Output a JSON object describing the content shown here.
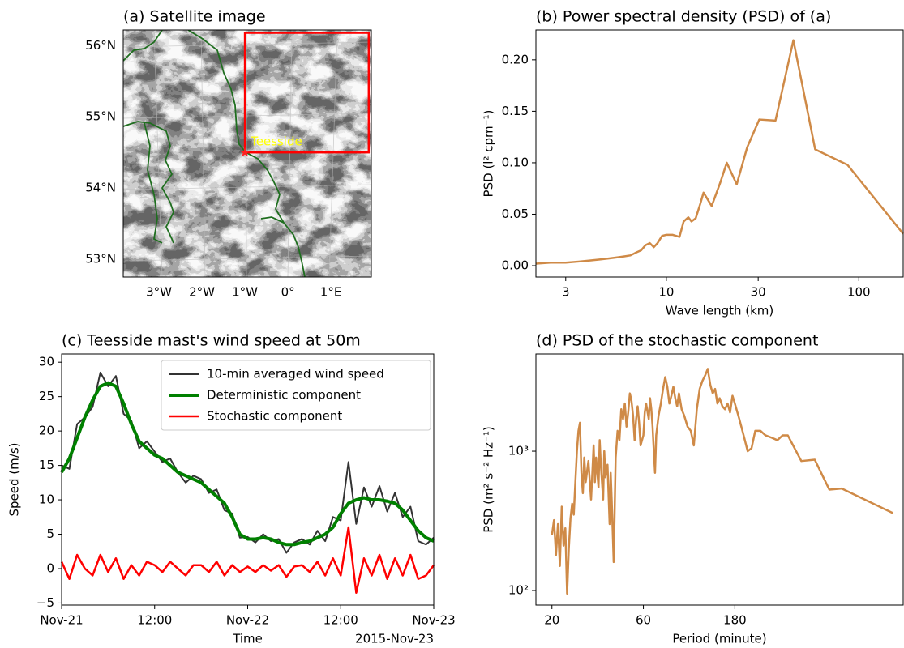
{
  "chart_data": [
    {
      "type": "map",
      "title": "(a) Satellite image",
      "xlim": [
        -3.83,
        1.94
      ],
      "ylim": [
        52.75,
        56.22
      ],
      "xticks": [
        {
          "value": -3,
          "label": "3°W"
        },
        {
          "value": -2,
          "label": "2°W"
        },
        {
          "value": -1,
          "label": "1°W"
        },
        {
          "value": 0,
          "label": "0°"
        },
        {
          "value": 1,
          "label": "1°E"
        }
      ],
      "yticks": [
        {
          "value": 53,
          "label": "53°N"
        },
        {
          "value": 54,
          "label": "54°N"
        },
        {
          "value": 55,
          "label": "55°N"
        },
        {
          "value": 56,
          "label": "56°N"
        }
      ],
      "marker": {
        "label": "Teesside",
        "x": -1.0,
        "y": 54.5,
        "color": "#ff2020",
        "label_color": "#ffff00"
      },
      "region": {
        "x": [
          -1.0,
          1.88
        ],
        "y": [
          54.5,
          56.18
        ],
        "color": "#ff0000"
      }
    },
    {
      "type": "line",
      "title": "(b) Power spectral density (PSD) of (a)",
      "xlabel": "Wave length (km)",
      "ylabel": "PSD (l² cpm⁻¹)",
      "xscale": "log",
      "xlim": [
        2.1,
        170
      ],
      "ylim": [
        -0.011,
        0.229
      ],
      "xticks": [
        3,
        10,
        30,
        100
      ],
      "yticks": [
        {
          "value": 0,
          "label": "0.00"
        },
        0.05,
        {
          "value": 0.1,
          "label": "0.10"
        },
        0.15,
        {
          "value": 0.2,
          "label": "0.20"
        }
      ],
      "color": "#cf8a47",
      "x": [
        2.1,
        2.5,
        3,
        3.5,
        4,
        4.5,
        5,
        5.5,
        6,
        6.5,
        7,
        7.4,
        7.8,
        8.2,
        8.6,
        9,
        9.5,
        10,
        10.8,
        11.7,
        12.3,
        13,
        13.5,
        14.2,
        15,
        15.6,
        17.2,
        19,
        20.6,
        23.2,
        26.3,
        30.4,
        36.9,
        45.7,
        59.3,
        87.3,
        170
      ],
      "values": [
        0.002,
        0.003,
        0.003,
        0.004,
        0.005,
        0.006,
        0.007,
        0.008,
        0.009,
        0.01,
        0.013,
        0.015,
        0.02,
        0.022,
        0.018,
        0.022,
        0.029,
        0.03,
        0.03,
        0.028,
        0.043,
        0.047,
        0.043,
        0.046,
        0.06,
        0.071,
        0.058,
        0.08,
        0.1,
        0.079,
        0.115,
        0.142,
        0.141,
        0.219,
        0.113,
        0.098,
        0.031
      ]
    },
    {
      "type": "line",
      "title": "(c) Teesside mast's wind speed at 50m",
      "xlabel": "Time",
      "ylabel": "Speed (m/s)",
      "x_offset_label": "2015-Nov-23",
      "xlim": [
        0,
        48
      ],
      "ylim": [
        -5.3,
        31.2
      ],
      "xticks": [
        {
          "value": 0,
          "label": "Nov-21"
        },
        {
          "value": 12,
          "label": "12:00"
        },
        {
          "value": 24,
          "label": "Nov-22"
        },
        {
          "value": 36,
          "label": "12:00"
        },
        {
          "value": 48,
          "label": "Nov-23"
        }
      ],
      "yticks": [
        {
          "value": -5,
          "label": "−5"
        },
        0,
        5,
        10,
        15,
        20,
        25,
        30
      ],
      "legend": "upper right",
      "x": [
        0,
        1,
        2,
        3,
        4,
        5,
        6,
        7,
        8,
        9,
        10,
        11,
        12,
        13,
        14,
        15,
        16,
        17,
        18,
        19,
        20,
        21,
        22,
        23,
        24,
        25,
        26,
        27,
        28,
        29,
        30,
        31,
        32,
        33,
        34,
        35,
        36,
        37,
        38,
        39,
        40,
        41,
        42,
        43,
        44,
        45,
        46,
        47,
        48
      ],
      "series": [
        {
          "name": "10-min averaged wind speed",
          "color": "#333333",
          "width": 2,
          "values": [
            15,
            14.5,
            21,
            22,
            23.5,
            28.5,
            26.5,
            28,
            22.5,
            21.5,
            17.5,
            18.5,
            17,
            15.5,
            16,
            14,
            12.5,
            13.5,
            13,
            11,
            11.5,
            8.5,
            8,
            4.5,
            4.6,
            3.8,
            5,
            4,
            4.3,
            2.3,
            3.8,
            4.3,
            3.5,
            5.5,
            4,
            7.5,
            7,
            15.5,
            6.5,
            11.8,
            9,
            12,
            8.3,
            11,
            7.5,
            9,
            4,
            3.5,
            4.5
          ]
        },
        {
          "name": "Deterministic component",
          "color": "#008000",
          "width": 4,
          "values": [
            14,
            16,
            19,
            22,
            24.5,
            26.5,
            27,
            26.5,
            24,
            21,
            18.5,
            17.5,
            16.5,
            16,
            15,
            14,
            13.5,
            13,
            12.5,
            11.5,
            10.5,
            9.5,
            7.5,
            5,
            4.3,
            4.3,
            4.5,
            4.3,
            3.8,
            3.5,
            3.5,
            3.8,
            4,
            4.5,
            5,
            6,
            8,
            9.5,
            10,
            10.3,
            10,
            10,
            9.8,
            9.5,
            8.5,
            7,
            5.5,
            4.5,
            4
          ]
        },
        {
          "name": "Stochastic component",
          "color": "#ff0000",
          "width": 2.5,
          "values": [
            1,
            -1.5,
            2,
            0,
            -1,
            2,
            -0.5,
            1.5,
            -1.5,
            0.5,
            -1,
            1,
            0.5,
            -0.5,
            1,
            0,
            -1,
            0.5,
            0.5,
            -0.5,
            1,
            -1,
            0.5,
            -0.5,
            0.3,
            -0.5,
            0.5,
            -0.3,
            0.5,
            -1.2,
            0.3,
            0.5,
            -0.5,
            1,
            -1,
            1.5,
            -1,
            6,
            -3.5,
            1.5,
            -1,
            2,
            -1.5,
            1.5,
            -1,
            2,
            -1.5,
            -1,
            0.5
          ]
        }
      ]
    },
    {
      "type": "line",
      "title": "(d) PSD of the stochastic component",
      "xlabel": "Period (minute)",
      "ylabel": "PSD (m² s⁻² Hz⁻¹)",
      "xscale": "log",
      "yscale": "log",
      "xlim": [
        16.5,
        1360
      ],
      "ylim": [
        78.6,
        4990
      ],
      "xticks": [
        20,
        60,
        180
      ],
      "yticks": [
        {
          "value": 100,
          "label": "10²"
        },
        {
          "value": 1000,
          "label": "10³"
        }
      ],
      "color": "#cf8a47",
      "x": [
        20,
        20.5,
        21,
        21.5,
        22,
        22.5,
        23,
        23.5,
        24,
        24.5,
        25,
        25.5,
        26,
        26.5,
        27,
        27.5,
        28,
        28.5,
        29,
        29.5,
        30,
        31,
        32,
        32.5,
        33,
        33.5,
        34,
        35,
        35.5,
        36,
        37,
        37.5,
        38,
        39,
        40,
        40.5,
        41,
        42,
        43,
        44,
        45,
        46,
        47,
        48,
        49,
        50,
        51,
        52,
        53,
        54,
        55,
        56,
        57,
        58,
        60,
        61,
        62,
        64,
        65,
        66,
        67,
        68,
        69,
        70,
        72,
        74,
        76,
        78,
        80,
        82,
        84,
        86,
        88,
        90,
        92,
        95,
        98,
        102,
        106,
        110,
        114,
        118,
        122,
        126,
        130,
        134,
        138,
        142,
        146,
        150,
        155,
        160,
        165,
        170,
        175,
        180,
        190,
        200,
        210,
        220,
        230,
        245,
        260,
        280,
        300,
        320,
        340,
        400,
        470,
        560,
        650,
        1200
      ],
      "values": [
        250,
        320,
        180,
        300,
        150,
        400,
        210,
        280,
        95,
        200,
        330,
        420,
        350,
        600,
        1000,
        1400,
        1600,
        700,
        500,
        900,
        600,
        850,
        450,
        700,
        1100,
        600,
        900,
        550,
        1200,
        800,
        450,
        1000,
        650,
        800,
        300,
        700,
        450,
        160,
        900,
        1400,
        1200,
        2000,
        1700,
        2200,
        1500,
        1900,
        2600,
        2300,
        1800,
        1200,
        1700,
        2100,
        1600,
        1100,
        1300,
        1900,
        2200,
        1700,
        2400,
        2000,
        1500,
        1000,
        700,
        1300,
        1800,
        2200,
        2800,
        3400,
        2900,
        2200,
        2500,
        2900,
        2400,
        2100,
        2600,
        2000,
        1800,
        1500,
        1400,
        1100,
        2000,
        2800,
        3200,
        3500,
        3900,
        3000,
        2600,
        2800,
        2200,
        2400,
        2100,
        2000,
        2200,
        1900,
        2500,
        2200,
        1700,
        1300,
        1000,
        1050,
        1400,
        1400,
        1300,
        1250,
        1200,
        1300,
        1300,
        850,
        870,
        530,
        540,
        360
      ]
    }
  ]
}
